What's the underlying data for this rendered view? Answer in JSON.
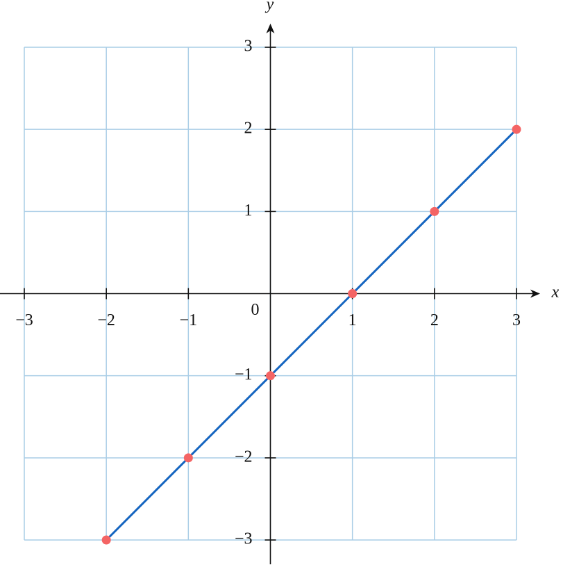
{
  "chart_data": {
    "type": "line",
    "x_label": "x",
    "y_label": "y",
    "x": [
      -2,
      -1,
      0,
      1,
      2,
      3
    ],
    "series": [
      {
        "color": "#1565c0",
        "marker_color": "#f46464",
        "values": [
          -3,
          -2,
          -1,
          0,
          1,
          2
        ]
      }
    ],
    "xlim": [
      -3,
      3
    ],
    "ylim": [
      -3,
      3
    ],
    "xticks": [
      {
        "value": -3,
        "label": "−3"
      },
      {
        "value": -2,
        "label": "−2"
      },
      {
        "value": -1,
        "label": "−1"
      },
      0,
      1,
      2,
      3
    ],
    "yticks": [
      {
        "value": -3,
        "label": "−3"
      },
      {
        "value": -2,
        "label": "−2"
      },
      {
        "value": -1,
        "label": "−1"
      },
      1,
      2,
      3
    ],
    "grid": true
  }
}
